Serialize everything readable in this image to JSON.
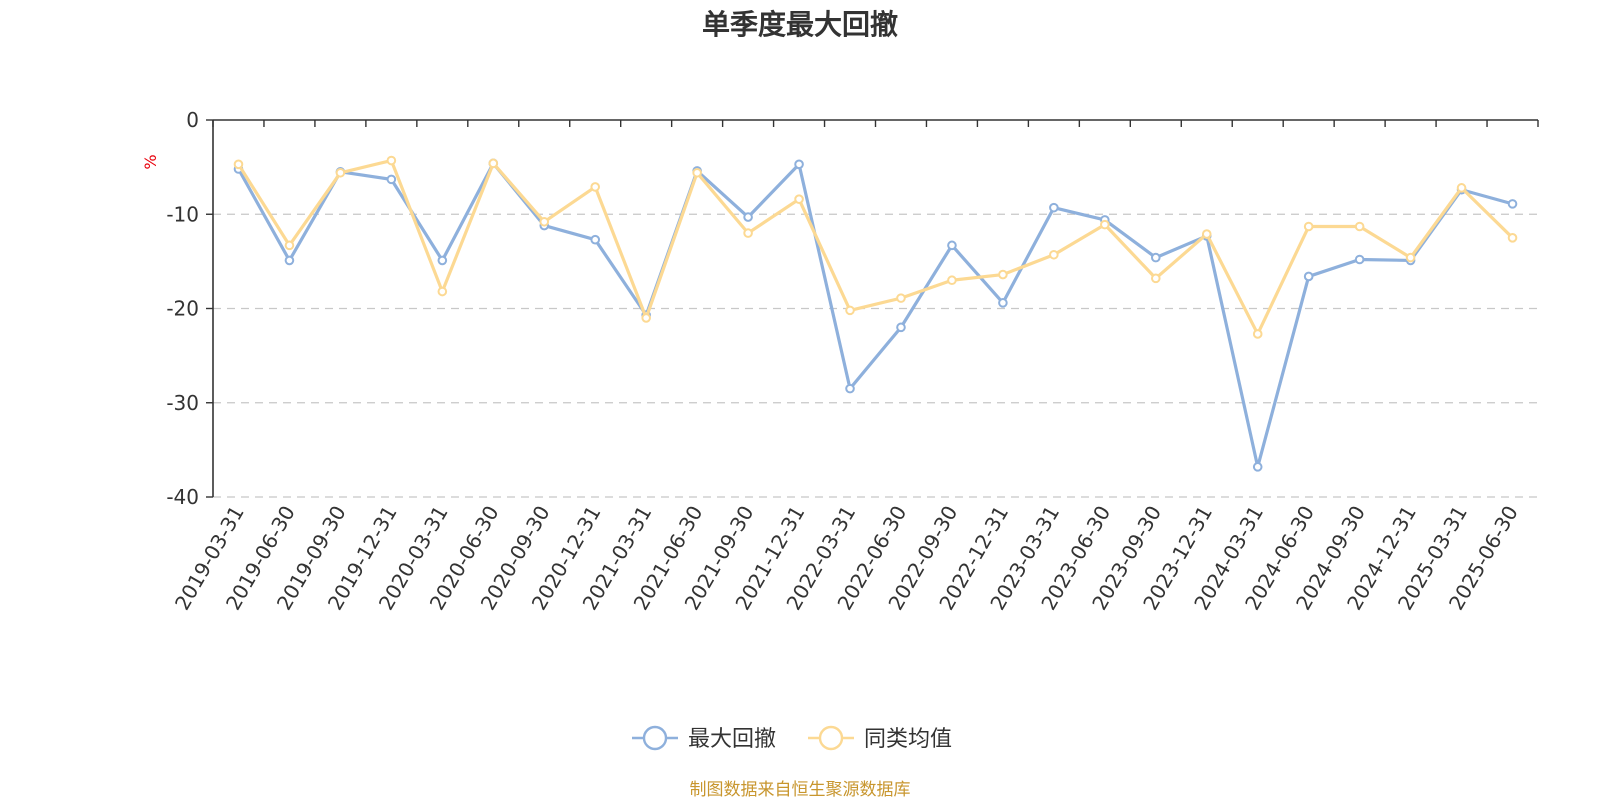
{
  "chart_data": {
    "type": "line",
    "title": "单季度最大回撤",
    "ylabel": "%",
    "ylim": [
      -40,
      0
    ],
    "yticks": [
      0,
      -10,
      -20,
      -30,
      -40
    ],
    "grid": true,
    "legend_position": "bottom-center",
    "source_note": "制图数据来自恒生聚源数据库",
    "categories": [
      "2019-03-31",
      "2019-06-30",
      "2019-09-30",
      "2019-12-31",
      "2020-03-31",
      "2020-06-30",
      "2020-09-30",
      "2020-12-31",
      "2021-03-31",
      "2021-06-30",
      "2021-09-30",
      "2021-12-31",
      "2022-03-31",
      "2022-06-30",
      "2022-09-30",
      "2022-12-31",
      "2023-03-31",
      "2023-06-30",
      "2023-09-30",
      "2023-12-31",
      "2024-03-31",
      "2024-06-30",
      "2024-09-30",
      "2024-12-31",
      "2025-03-31",
      "2025-06-30"
    ],
    "series": [
      {
        "name": "最大回撤",
        "color": "#8eb0dc",
        "values": [
          -5.2,
          -14.9,
          -5.5,
          -6.3,
          -14.9,
          -4.6,
          -11.2,
          -12.7,
          -20.7,
          -5.4,
          -10.3,
          -4.7,
          -28.5,
          -22.0,
          -13.3,
          -19.4,
          -9.3,
          -10.6,
          -14.6,
          -12.3,
          -36.8,
          -16.6,
          -14.8,
          -14.9,
          -7.4,
          -8.9
        ]
      },
      {
        "name": "同类均值",
        "color": "#fcd993",
        "values": [
          -4.7,
          -13.3,
          -5.6,
          -4.3,
          -18.2,
          -4.6,
          -10.8,
          -7.1,
          -21.0,
          -5.6,
          -12.0,
          -8.4,
          -20.2,
          -18.9,
          -17.0,
          -16.4,
          -14.3,
          -11.1,
          -16.8,
          -12.1,
          -22.7,
          -11.3,
          -11.3,
          -14.6,
          -7.2,
          -12.5
        ]
      }
    ]
  },
  "colors": {
    "axis": "#333333",
    "unit": "#e8000b",
    "source": "#c8962e",
    "background": "#ffffff"
  }
}
